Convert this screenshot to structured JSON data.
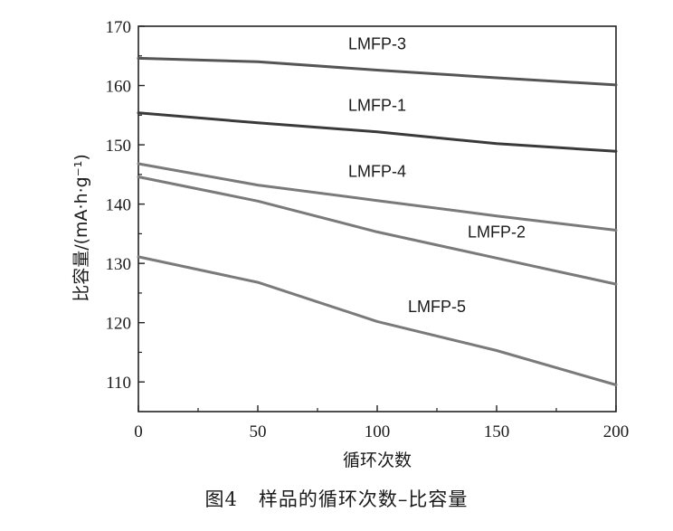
{
  "figure_caption": "图4   样品的循环次数–比容量",
  "chart_data": {
    "type": "line",
    "title": "",
    "xlabel": "循环次数",
    "ylabel": "比容量/(mA·h·g⁻¹)",
    "xlim": [
      0,
      200
    ],
    "ylim": [
      105,
      170
    ],
    "xticks": [
      0,
      50,
      100,
      150,
      200
    ],
    "xtick_labels": [
      "0",
      "50",
      "100",
      "150",
      "200"
    ],
    "yticks": [
      110,
      120,
      130,
      140,
      150,
      160,
      170
    ],
    "ytick_labels": [
      "110",
      "120",
      "130",
      "140",
      "150",
      "160",
      "170"
    ],
    "grid": false,
    "legend": "inline labels",
    "series": [
      {
        "name": "LMFP-3",
        "color": "#555555",
        "x": [
          0,
          50,
          100,
          150,
          200
        ],
        "values": [
          164.6,
          164.0,
          162.6,
          161.3,
          160.1
        ]
      },
      {
        "name": "LMFP-1",
        "color": "#3a3a3a",
        "x": [
          0,
          50,
          100,
          150,
          200
        ],
        "values": [
          155.4,
          153.7,
          152.2,
          150.2,
          148.9
        ]
      },
      {
        "name": "LMFP-4",
        "color": "#7a7a7a",
        "x": [
          0,
          50,
          100,
          150,
          200
        ],
        "values": [
          146.8,
          143.2,
          140.6,
          138.0,
          135.6
        ]
      },
      {
        "name": "LMFP-2",
        "color": "#7a7a7a",
        "x": [
          0,
          50,
          100,
          150,
          200
        ],
        "values": [
          144.6,
          140.5,
          135.3,
          130.9,
          126.5
        ]
      },
      {
        "name": "LMFP-5",
        "color": "#7a7a7a",
        "x": [
          0,
          50,
          100,
          150,
          200
        ],
        "values": [
          131.1,
          126.8,
          120.2,
          115.3,
          109.5
        ]
      }
    ]
  }
}
